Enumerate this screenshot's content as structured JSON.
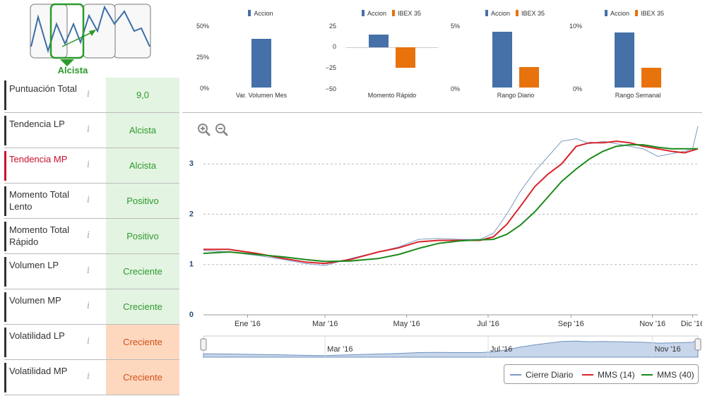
{
  "trend": {
    "label": "Alcista"
  },
  "rows": [
    {
      "label": "Puntuación Total",
      "value": "9,0",
      "status": "good",
      "highlight": false
    },
    {
      "label": "Tendencia LP",
      "value": "Alcista",
      "status": "good",
      "highlight": false
    },
    {
      "label": "Tendencia MP",
      "value": "Alcista",
      "status": "good",
      "highlight": true
    },
    {
      "label": "Momento Total Lento",
      "value": "Positivo",
      "status": "good",
      "highlight": false
    },
    {
      "label": "Momento Total Rápido",
      "value": "Positivo",
      "status": "good",
      "highlight": false
    },
    {
      "label": "Volumen LP",
      "value": "Creciente",
      "status": "good",
      "highlight": false
    },
    {
      "label": "Volumen MP",
      "value": "Creciente",
      "status": "good",
      "highlight": false
    },
    {
      "label": "Volatilidad LP",
      "value": "Creciente",
      "status": "warn",
      "highlight": false
    },
    {
      "label": "Volatilidad MP",
      "value": "Creciente",
      "status": "warn",
      "highlight": false
    }
  ],
  "info_glyph": "i",
  "colors": {
    "accion": "#4570a8",
    "ibex": "#e8720c",
    "cierre": "#7d9bc4",
    "mms14": "#d8232a",
    "mms40": "#1a8a1a",
    "good_bg": "#e4f4e2",
    "warn_bg": "#fdd8bf"
  },
  "chart_data": [
    {
      "type": "bar",
      "legend": [
        "Accion"
      ],
      "categories": [
        "Var. Volumen Mes"
      ],
      "series": [
        {
          "name": "Accion",
          "values": [
            40
          ]
        }
      ],
      "yticks": [
        "50%",
        "25%",
        "0%"
      ],
      "ylim": [
        0,
        50
      ]
    },
    {
      "type": "bar",
      "legend": [
        "Accion",
        "IBEX 35"
      ],
      "categories": [
        "Momento Rápido"
      ],
      "series": [
        {
          "name": "Accion",
          "values": [
            15
          ]
        },
        {
          "name": "IBEX 35",
          "values": [
            -26
          ]
        }
      ],
      "yticks": [
        "25",
        "0",
        "−25",
        "−50"
      ],
      "ylim": [
        -50,
        25
      ]
    },
    {
      "type": "bar",
      "legend": [
        "Accion",
        "IBEX 35"
      ],
      "categories": [
        "Rango Diario"
      ],
      "series": [
        {
          "name": "Accion",
          "values": [
            4.6
          ]
        },
        {
          "name": "IBEX 35",
          "values": [
            1.7
          ]
        }
      ],
      "yticks": [
        "5%",
        "0%"
      ],
      "ylim": [
        0,
        5
      ]
    },
    {
      "type": "bar",
      "legend": [
        "Accion",
        "IBEX 35"
      ],
      "categories": [
        "Rango Semanal"
      ],
      "series": [
        {
          "name": "Accion",
          "values": [
            9.1
          ]
        },
        {
          "name": "IBEX 35",
          "values": [
            3.3
          ]
        }
      ],
      "yticks": [
        "10%",
        "0%"
      ],
      "ylim": [
        0,
        10
      ]
    },
    {
      "type": "line",
      "x_labels": [
        "Ene '16",
        "Mar '16",
        "May '16",
        "Jul '16",
        "Sep '16",
        "Nov '16",
        "Dic '16"
      ],
      "navigator_labels": [
        "Mar '16",
        "Jul '16",
        "Nov '16"
      ],
      "yticks": [
        "0",
        "1",
        "2",
        "3"
      ],
      "ylim": [
        0,
        3.9
      ],
      "grid": true,
      "legend_position": "bottom-right",
      "series": [
        {
          "name": "Cierre Diario",
          "x": [
            "2015-12-01",
            "2015-12-20",
            "2016-01-10",
            "2016-01-30",
            "2016-02-15",
            "2016-03-01",
            "2016-03-20",
            "2016-04-10",
            "2016-04-25",
            "2016-05-10",
            "2016-05-25",
            "2016-06-10",
            "2016-06-25",
            "2016-07-05",
            "2016-07-15",
            "2016-07-25",
            "2016-08-05",
            "2016-08-15",
            "2016-08-25",
            "2016-09-05",
            "2016-09-15",
            "2016-09-25",
            "2016-10-05",
            "2016-10-15",
            "2016-10-25",
            "2016-11-05",
            "2016-11-15",
            "2016-11-25",
            "2016-12-01",
            "2016-12-05"
          ],
          "y": [
            1.28,
            1.25,
            1.18,
            1.1,
            1.02,
            0.98,
            1.12,
            1.25,
            1.35,
            1.5,
            1.52,
            1.5,
            1.5,
            1.62,
            2.0,
            2.45,
            2.85,
            3.15,
            3.45,
            3.5,
            3.4,
            3.45,
            3.4,
            3.35,
            3.3,
            3.15,
            3.2,
            3.25,
            3.3,
            3.75
          ]
        },
        {
          "name": "MMS (14)",
          "x": [
            "2015-12-01",
            "2015-12-20",
            "2016-01-10",
            "2016-01-30",
            "2016-02-15",
            "2016-03-01",
            "2016-03-20",
            "2016-04-10",
            "2016-04-25",
            "2016-05-10",
            "2016-05-25",
            "2016-06-10",
            "2016-06-25",
            "2016-07-05",
            "2016-07-15",
            "2016-07-25",
            "2016-08-05",
            "2016-08-15",
            "2016-08-25",
            "2016-09-05",
            "2016-09-15",
            "2016-09-25",
            "2016-10-05",
            "2016-10-15",
            "2016-10-25",
            "2016-11-05",
            "2016-11-15",
            "2016-11-25",
            "2016-12-05"
          ],
          "y": [
            1.3,
            1.3,
            1.22,
            1.12,
            1.05,
            1.02,
            1.1,
            1.25,
            1.33,
            1.45,
            1.48,
            1.48,
            1.48,
            1.55,
            1.8,
            2.15,
            2.55,
            2.8,
            3.0,
            3.35,
            3.42,
            3.42,
            3.45,
            3.42,
            3.35,
            3.3,
            3.25,
            3.22,
            3.3
          ]
        },
        {
          "name": "MMS (40)",
          "x": [
            "2015-12-01",
            "2015-12-20",
            "2016-01-10",
            "2016-01-30",
            "2016-02-15",
            "2016-03-01",
            "2016-03-20",
            "2016-04-10",
            "2016-04-25",
            "2016-05-10",
            "2016-05-25",
            "2016-06-10",
            "2016-06-25",
            "2016-07-05",
            "2016-07-15",
            "2016-07-25",
            "2016-08-05",
            "2016-08-15",
            "2016-08-25",
            "2016-09-05",
            "2016-09-15",
            "2016-09-25",
            "2016-10-05",
            "2016-10-15",
            "2016-10-25",
            "2016-11-05",
            "2016-11-15",
            "2016-11-25",
            "2016-12-05"
          ],
          "y": [
            1.22,
            1.25,
            1.2,
            1.15,
            1.1,
            1.06,
            1.07,
            1.12,
            1.2,
            1.32,
            1.42,
            1.47,
            1.49,
            1.5,
            1.6,
            1.78,
            2.05,
            2.35,
            2.65,
            2.9,
            3.1,
            3.25,
            3.35,
            3.38,
            3.38,
            3.33,
            3.3,
            3.3,
            3.3
          ]
        }
      ]
    }
  ],
  "legend": {
    "cierre": "Cierre Diario",
    "mms14": "MMS (14)",
    "mms40": "MMS (40)"
  }
}
